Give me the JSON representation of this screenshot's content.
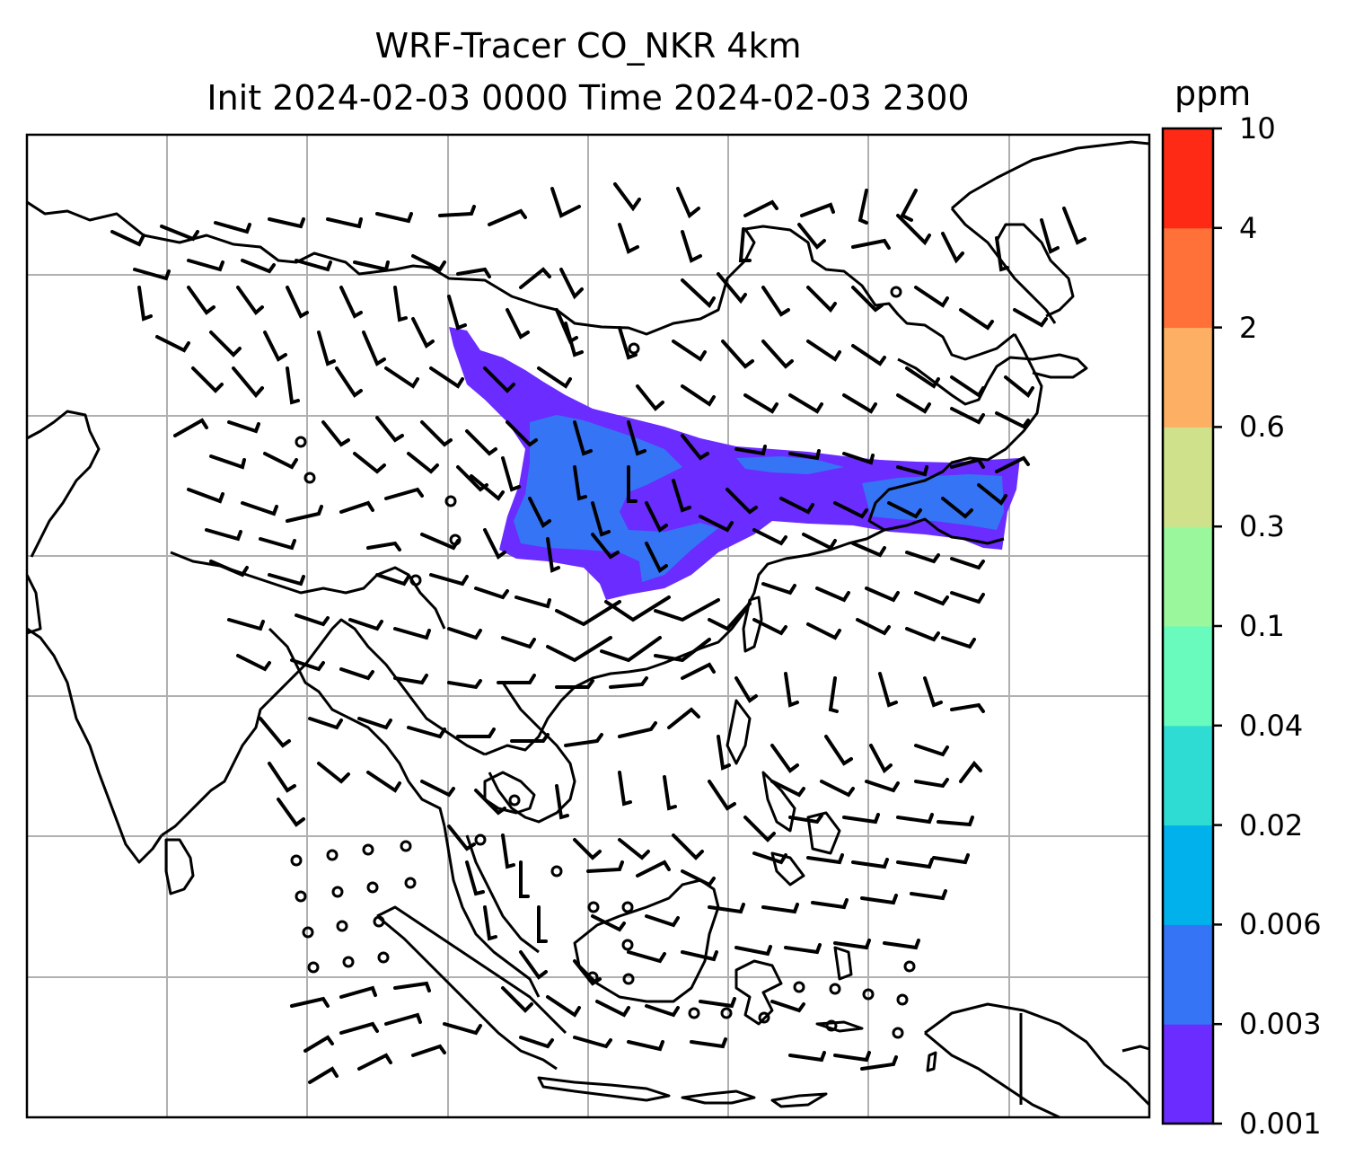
{
  "title_line1": "WRF-Tracer CO_NKR 4km",
  "title_line2": "Init 2024-02-03 0000 Time 2024-02-03 2300",
  "colorbar": {
    "unit": "ppm",
    "levels": [
      "0.001",
      "0.003",
      "0.006",
      "0.02",
      "0.04",
      "0.1",
      "0.3",
      "0.6",
      "2",
      "4",
      "10"
    ],
    "colors": [
      "#6a2cff",
      "#3575f5",
      "#00b1ec",
      "#2fdcd3",
      "#68fbbd",
      "#9af79b",
      "#d0e18b",
      "#fdb063",
      "#ff7138",
      "#ff2a16"
    ]
  },
  "map": {
    "gridlines": true,
    "gridline_color": "#b0b0b0",
    "coastline_color": "#000000",
    "plume_colors": [
      "#6a2cff",
      "#3575f5"
    ],
    "overlay": "wind barbs"
  }
}
